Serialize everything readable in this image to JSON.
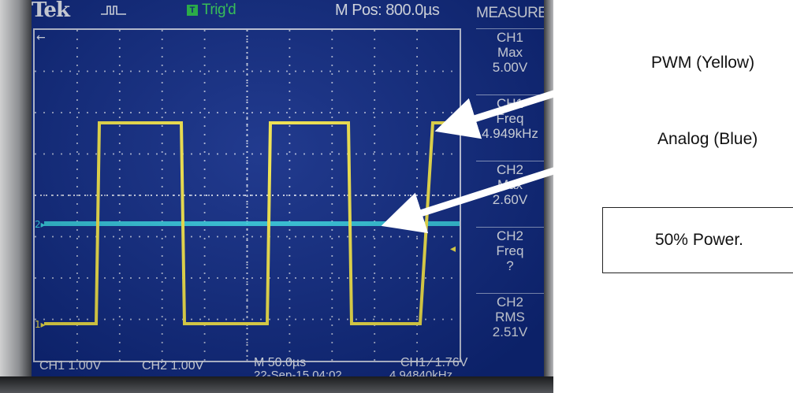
{
  "scope": {
    "brand": "Tek",
    "trigger_box": "T",
    "trigger_status": "Trig'd",
    "position": "M Pos: 800.0µs",
    "measure_title": "MEASURE",
    "measurements": [
      {
        "channel": "CH1",
        "type": "Max",
        "value": "5.00V"
      },
      {
        "channel": "CH1",
        "type": "Freq",
        "value": "4.949kHz"
      },
      {
        "channel": "CH2",
        "type": "Max",
        "value": "2.60V"
      },
      {
        "channel": "CH2",
        "type": "Freq",
        "value": "?"
      },
      {
        "channel": "CH2",
        "type": "RMS",
        "value": "2.51V"
      }
    ],
    "bottom": {
      "ch1_scale": "CH1  1.00V",
      "ch2_scale": "CH2  1.00V",
      "timebase": "M 50.0µs",
      "date": "22-Sep-15 04:02",
      "trigger_level": "CH1 ∕ 1.76V",
      "trigger_freq": "4.94840kHz"
    },
    "colors": {
      "screen": "#0f2a85",
      "ch1_trace": "#f2e44a",
      "ch2_trace": "#35d4e4",
      "grid": "#c8cfe6",
      "text": "#e9eef9",
      "trig_green": "#36d35c"
    },
    "icons": [
      "pulse-trigger-icon",
      "ch1-ground-marker-icon",
      "ch2-ground-marker-icon",
      "trigger-level-marker-icon"
    ]
  },
  "annotations": {
    "pwm_label": "PWM (Yellow)",
    "analog_label": "Analog (Blue)",
    "power_box_text": "50% Power."
  }
}
